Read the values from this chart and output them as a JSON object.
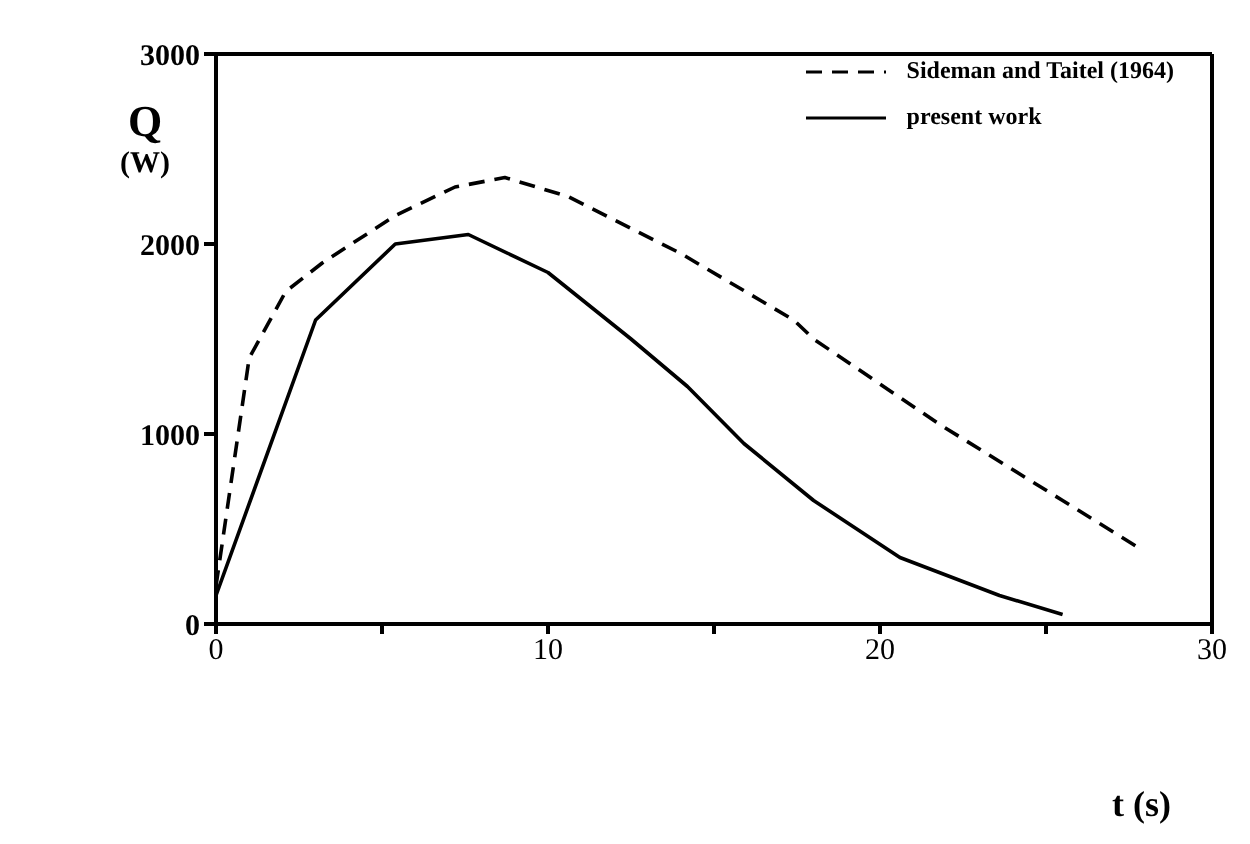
{
  "chart_data": {
    "type": "line",
    "xlabel": "t (s)",
    "ylabel": "Q (W)",
    "xlim": [
      0,
      30
    ],
    "ylim": [
      0,
      3000
    ],
    "xticks": [
      0,
      {
        "value": 5,
        "label": null
      },
      10,
      {
        "value": 15,
        "label": null
      },
      20,
      {
        "value": 25,
        "label": null
      },
      30
    ],
    "yticks": [
      0,
      1000,
      2000,
      3000
    ],
    "legend": "top right",
    "marker": "none",
    "series": [
      {
        "name": "Sideman and Taitel (1964)",
        "color": "#000000",
        "line_style": "dashed",
        "x": [
          0,
          1,
          2.1,
          3.2,
          5.4,
          7.2,
          8.7,
          10.6,
          14,
          17.4,
          18,
          21.8,
          25.5,
          27.8
        ],
        "values": [
          200,
          1400,
          1750,
          1900,
          2150,
          2300,
          2350,
          2250,
          1950,
          1600,
          1500,
          1050,
          650,
          400
        ]
      },
      {
        "name": "present work",
        "color": "#000000",
        "line_style": "solid",
        "x": [
          0,
          3,
          5.4,
          7.6,
          10,
          12.5,
          14.2,
          15.9,
          18,
          20.6,
          23.6,
          25.5
        ],
        "values": [
          150,
          1600,
          2000,
          2050,
          1850,
          1500,
          1250,
          950,
          650,
          350,
          150,
          50
        ]
      }
    ]
  }
}
